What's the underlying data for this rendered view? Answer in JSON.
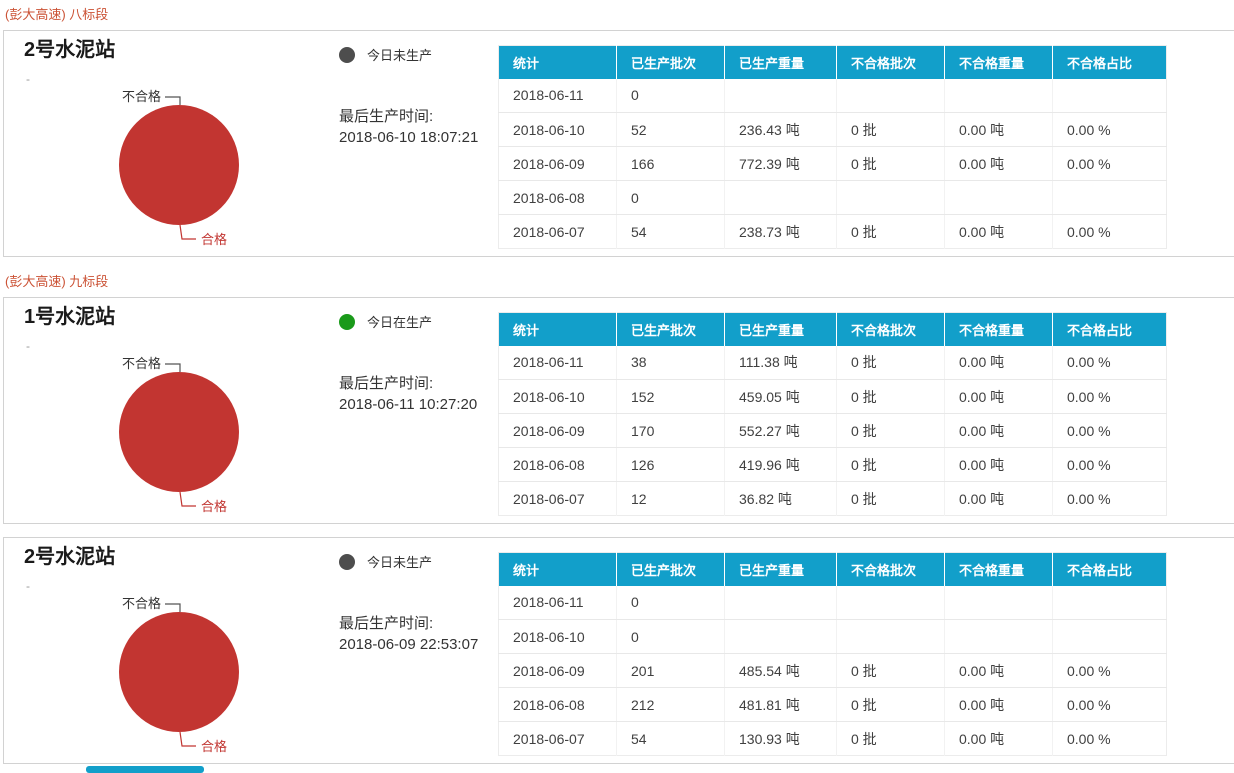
{
  "colors": {
    "header_bg": "#129fca",
    "group_label": "#cb5235",
    "pie_red": "#c23531",
    "status_green": "#1a9a1a",
    "status_gray": "#4d4d4d"
  },
  "table_headers": [
    "统计",
    "已生产批次",
    "已生产重量",
    "不合格批次",
    "不合格重量",
    "不合格占比"
  ],
  "labels": {
    "last_production": "最后生产时间:"
  },
  "pie_chart": {
    "type": "pie",
    "labels": [
      "不合格",
      "合格"
    ],
    "values_percent": [
      0,
      100
    ],
    "color": "#c23531"
  },
  "groups": [
    {
      "label": "(彭大高速) 八标段",
      "cards": [
        {
          "title": "2号水泥站",
          "subtitle": "-",
          "status": "not_producing",
          "status_label": "今日未生产",
          "last_production_time": "2018-06-10 18:07:21",
          "rows": [
            [
              "2018-06-11",
              "0",
              "",
              "",
              "",
              ""
            ],
            [
              "2018-06-10",
              "52",
              "236.43 吨",
              "0 批",
              "0.00 吨",
              "0.00 %"
            ],
            [
              "2018-06-09",
              "166",
              "772.39 吨",
              "0 批",
              "0.00 吨",
              "0.00 %"
            ],
            [
              "2018-06-08",
              "0",
              "",
              "",
              "",
              ""
            ],
            [
              "2018-06-07",
              "54",
              "238.73 吨",
              "0 批",
              "0.00 吨",
              "0.00 %"
            ]
          ]
        }
      ]
    },
    {
      "label": "(彭大高速) 九标段",
      "cards": [
        {
          "title": "1号水泥站",
          "subtitle": "-",
          "status": "producing",
          "status_label": "今日在生产",
          "last_production_time": "2018-06-11 10:27:20",
          "rows": [
            [
              "2018-06-11",
              "38",
              "111.38 吨",
              "0 批",
              "0.00 吨",
              "0.00 %"
            ],
            [
              "2018-06-10",
              "152",
              "459.05 吨",
              "0 批",
              "0.00 吨",
              "0.00 %"
            ],
            [
              "2018-06-09",
              "170",
              "552.27 吨",
              "0 批",
              "0.00 吨",
              "0.00 %"
            ],
            [
              "2018-06-08",
              "126",
              "419.96 吨",
              "0 批",
              "0.00 吨",
              "0.00 %"
            ],
            [
              "2018-06-07",
              "12",
              "36.82 吨",
              "0 批",
              "0.00 吨",
              "0.00 %"
            ]
          ]
        },
        {
          "title": "2号水泥站",
          "subtitle": "-",
          "status": "not_producing",
          "status_label": "今日未生产",
          "last_production_time": "2018-06-09 22:53:07",
          "rows": [
            [
              "2018-06-11",
              "0",
              "",
              "",
              "",
              ""
            ],
            [
              "2018-06-10",
              "0",
              "",
              "",
              "",
              ""
            ],
            [
              "2018-06-09",
              "201",
              "485.54 吨",
              "0 批",
              "0.00 吨",
              "0.00 %"
            ],
            [
              "2018-06-08",
              "212",
              "481.81 吨",
              "0 批",
              "0.00 吨",
              "0.00 %"
            ],
            [
              "2018-06-07",
              "54",
              "130.93 吨",
              "0 批",
              "0.00 吨",
              "0.00 %"
            ]
          ]
        }
      ]
    }
  ]
}
